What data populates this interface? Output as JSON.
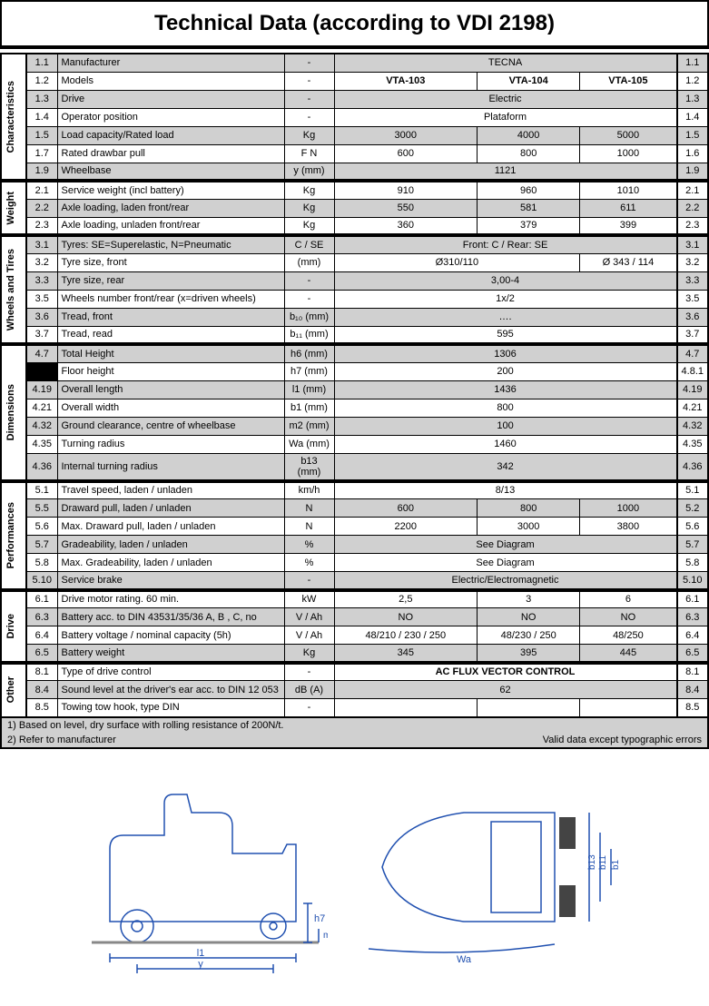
{
  "title": "Technical Data (according to VDI 2198)",
  "colors": {
    "grey": "#d0d0d0",
    "black": "#000000",
    "blue": "#2050b0"
  },
  "columns": {
    "models_header": "-",
    "models": [
      "VTA-103",
      "VTA-104",
      "VTA-105"
    ]
  },
  "sections": [
    {
      "label": "Characteristics",
      "rows": [
        {
          "i": "1.1",
          "d": "Manufacturer",
          "u": "-",
          "span": "TECNA",
          "ir": "1.1",
          "g": true
        },
        {
          "i": "1.2",
          "d": "Models",
          "u": "-",
          "v": [
            "VTA-103",
            "VTA-104",
            "VTA-105"
          ],
          "bold": true,
          "ir": "1.2"
        },
        {
          "i": "1.3",
          "d": "Drive",
          "u": "-",
          "span": "Electric",
          "ir": "1.3",
          "g": true
        },
        {
          "i": "1.4",
          "d": "Operator position",
          "u": "-",
          "span": "Plataform",
          "ir": "1.4"
        },
        {
          "i": "1.5",
          "d": "Load capacity/Rated load",
          "u": "Kg",
          "v": [
            "3000",
            "4000",
            "5000"
          ],
          "ir": "1.5",
          "g": true
        },
        {
          "i": "1.7",
          "d": "Rated drawbar pull",
          "u": "F    N",
          "v": [
            "600",
            "800",
            "1000"
          ],
          "ir": "1.6"
        },
        {
          "i": "1.9",
          "d": "Wheelbase",
          "u": "y (mm)",
          "span": "1121",
          "ir": "1.9",
          "g": true
        }
      ]
    },
    {
      "label": "Weight",
      "rows": [
        {
          "i": "2.1",
          "d": "Service weight (incl battery)",
          "u": "Kg",
          "v": [
            "910",
            "960",
            "1010"
          ],
          "ir": "2.1",
          "hs": true
        },
        {
          "i": "2.2",
          "d": "Axle loading, laden front/rear",
          "u": "Kg",
          "v": [
            "550",
            "581",
            "611"
          ],
          "ir": "2.2",
          "g": true
        },
        {
          "i": "2.3",
          "d": "Axle loading, unladen front/rear",
          "u": "Kg",
          "v": [
            "360",
            "379",
            "399"
          ],
          "ir": "2.3"
        }
      ]
    },
    {
      "label": "Wheels and Tires",
      "rows": [
        {
          "i": "3.1",
          "d": "Tyres: SE=Superelastic, N=Pneumatic",
          "u": "C / SE",
          "span": "Front: C / Rear: SE",
          "ir": "3.1",
          "g": true,
          "hs": true
        },
        {
          "i": "3.2",
          "d": "Tyre size, front",
          "u": "(mm)",
          "v2": [
            "Ø310/110",
            "Ø 343 / 114"
          ],
          "ir": "3.2"
        },
        {
          "i": "3.3",
          "d": "Tyre size, rear",
          "u": "-",
          "span": "3,00-4",
          "ir": "3.3",
          "g": true
        },
        {
          "i": "3.5",
          "d": "Wheels number front/rear (x=driven wheels)",
          "u": "-",
          "span": "1x/2",
          "ir": "3.5"
        },
        {
          "i": "3.6",
          "d": "Tread, front",
          "u": "b₁₀ (mm)",
          "span": "….",
          "ir": "3.6",
          "g": true
        },
        {
          "i": "3.7",
          "d": "Tread, read",
          "u": "b₁₁ (mm)",
          "span": "595",
          "ir": "3.7"
        }
      ]
    },
    {
      "label": "Dimensions",
      "rows": [
        {
          "i": "4.7",
          "d": "Total Height",
          "u": "h6 (mm)",
          "span": "1306",
          "ir": "4.7",
          "g": true,
          "hs": true
        },
        {
          "i": "",
          "d": "Floor height",
          "u": "h7 (mm)",
          "span": "200",
          "ir": "4.8.1",
          "blk": true
        },
        {
          "i": "4.19",
          "d": "Overall length",
          "u": "l1 (mm)",
          "span": "1436",
          "ir": "4.19",
          "g": true
        },
        {
          "i": "4.21",
          "d": "Overall width",
          "u": "b1 (mm)",
          "span": "800",
          "ir": "4.21"
        },
        {
          "i": "4.32",
          "d": "Ground clearance, centre of wheelbase",
          "u": "m2 (mm)",
          "span": "100",
          "ir": "4.32",
          "g": true
        },
        {
          "i": "4.35",
          "d": "Turning radius",
          "u": "Wa (mm)",
          "span": "1460",
          "ir": "4.35"
        },
        {
          "i": "4.36",
          "d": "Internal turning radius",
          "u": "b13 (mm)",
          "span": "342",
          "ir": "4.36",
          "g": true
        }
      ]
    },
    {
      "label": "Performances",
      "rows": [
        {
          "i": "5.1",
          "d": "Travel speed, laden / unladen",
          "u": "km/h",
          "span": "8/13",
          "ir": "5.1",
          "hs": true
        },
        {
          "i": "5.5",
          "d": "Draward pull, laden / unladen",
          "u": "N",
          "v": [
            "600",
            "800",
            "1000"
          ],
          "ir": "5.2",
          "g": true
        },
        {
          "i": "5.6",
          "d": "Max. Draward pull, laden / unladen",
          "u": "N",
          "v": [
            "2200",
            "3000",
            "3800"
          ],
          "ir": "5.6"
        },
        {
          "i": "5.7",
          "d": "Gradeability, laden / unladen",
          "u": "%",
          "span": "See Diagram",
          "ir": "5.7",
          "g": true
        },
        {
          "i": "5.8",
          "d": "Max. Gradeability, laden / unladen",
          "u": "%",
          "span": "See Diagram",
          "ir": "5.8"
        },
        {
          "i": "5.10",
          "d": "Service brake",
          "u": "-",
          "span": "Electric/Electromagnetic",
          "ir": "5.10",
          "g": true
        }
      ]
    },
    {
      "label": "Drive",
      "rows": [
        {
          "i": "6.1",
          "d": "Drive motor rating. 60 min.",
          "u": "kW",
          "v": [
            "2,5",
            "3",
            "6"
          ],
          "ir": "6.1",
          "hs": true
        },
        {
          "i": "6.3",
          "d": "Battery acc. to DIN 43531/35/36 A, B , C, no",
          "u": "V / Ah",
          "v": [
            "NO",
            "NO",
            "NO"
          ],
          "ir": "6.3",
          "g": true
        },
        {
          "i": "6.4",
          "d": "Battery voltage / nominal capacity (5h)",
          "u": "V / Ah",
          "v": [
            "48/210 / 230 / 250",
            "48/230 / 250",
            "48/250"
          ],
          "ir": "6.4"
        },
        {
          "i": "6.5",
          "d": "Battery weight",
          "u": "Kg",
          "v": [
            "345",
            "395",
            "445"
          ],
          "ir": "6.5",
          "g": true
        }
      ]
    },
    {
      "label": "Other",
      "rows": [
        {
          "i": "8.1",
          "d": "Type of drive control",
          "u": "-",
          "span": "AC FLUX VECTOR CONTROL",
          "bold": true,
          "ir": "8.1",
          "hs": true
        },
        {
          "i": "8.4",
          "d": "Sound level at the driver's ear acc. to DIN 12 053",
          "u": "dB (A)",
          "span": "62",
          "ir": "8.4",
          "g": true
        },
        {
          "i": "8.5",
          "d": "Towing tow hook, type DIN",
          "u": "-",
          "v": [
            "",
            "",
            ""
          ],
          "ir": "8.5"
        }
      ]
    }
  ],
  "notes": [
    "1) Based on level, dry surface with rolling resistance of 200N/t.",
    "2) Refer to manufacturer"
  ],
  "notes_right": "Valid data except typographic errors",
  "diagram_labels": {
    "l1": "l1",
    "y": "y",
    "h7": "h7",
    "m2": "m2",
    "wa": "Wa",
    "b13": "b13",
    "b11": "b11",
    "b1": "b1"
  }
}
